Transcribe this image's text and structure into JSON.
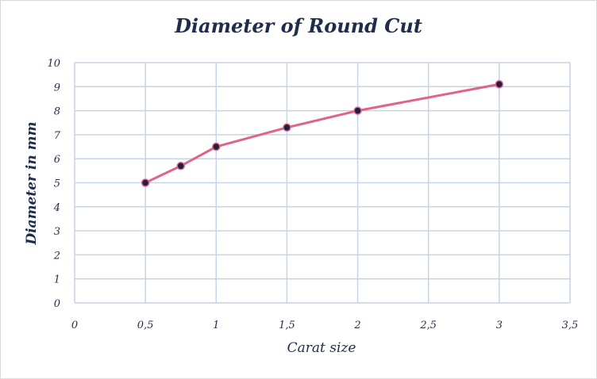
{
  "chart_data": {
    "type": "line",
    "title": "Diameter of Round Cut",
    "xlabel": "Carat size",
    "ylabel": "Diameter in mm",
    "xlim": [
      0,
      3.5
    ],
    "ylim": [
      0,
      10
    ],
    "x_ticks": [
      "0",
      "0,5",
      "1",
      "1,5",
      "2",
      "2,5",
      "3",
      "3,5"
    ],
    "y_ticks": [
      "0",
      "1",
      "2",
      "3",
      "4",
      "5",
      "6",
      "7",
      "8",
      "9",
      "10"
    ],
    "grid": true,
    "series": [
      {
        "x": [
          0.5,
          0.75,
          1,
          1.5,
          2,
          3
        ],
        "y": [
          5.0,
          5.7,
          6.5,
          7.3,
          8.0,
          9.1
        ],
        "line_color": "#e06489",
        "marker_fill": "#1f2040"
      }
    ]
  }
}
